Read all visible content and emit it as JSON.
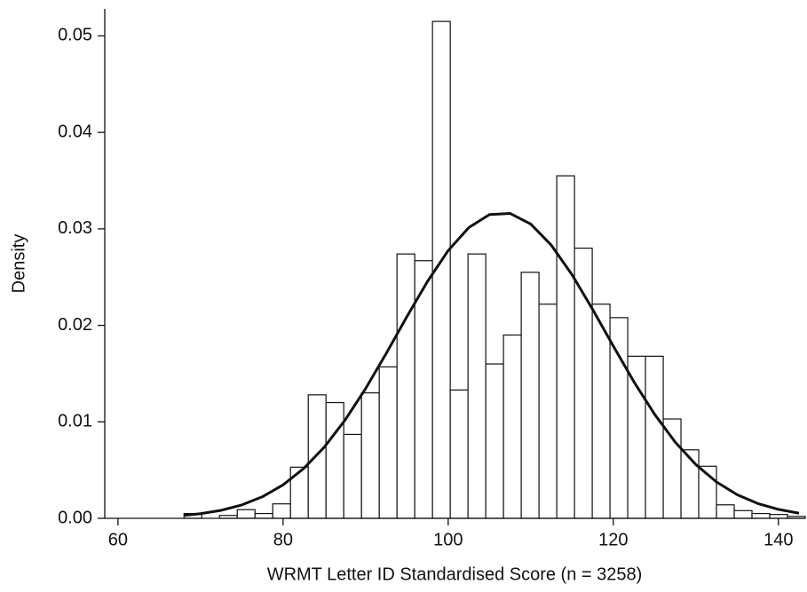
{
  "chart_data": {
    "type": "histogram",
    "x_label": "WRMT Letter ID Standardised Score (n = 3258)",
    "y_label": "Density",
    "bins": [
      68,
      70.15,
      72.3,
      74.45,
      76.6,
      78.75,
      80.9,
      83.05,
      85.2,
      87.35,
      89.5,
      91.65,
      93.8,
      95.95,
      98.1,
      100.25,
      102.4,
      104.55,
      106.7,
      108.85,
      111,
      113.15,
      115.3,
      117.45,
      119.6,
      121.75,
      123.9,
      126.05,
      128.2,
      130.35,
      132.5,
      134.65,
      136.8,
      138.95,
      141.1,
      143.25
    ],
    "values": [
      0.0005,
      0,
      0.0003,
      0.0009,
      0.0005,
      0.0015,
      0.0053,
      0.0128,
      0.012,
      0.0087,
      0.013,
      0.0157,
      0.0274,
      0.0267,
      0.0515,
      0.0133,
      0.0274,
      0.016,
      0.019,
      0.0255,
      0.0222,
      0.0355,
      0.028,
      0.0222,
      0.0208,
      0.0168,
      0.0168,
      0.0103,
      0.0071,
      0.0054,
      0.0014,
      0.0008,
      0.0005,
      0.0004,
      0.0002
    ],
    "color": "#ffffff",
    "edge_color": "#111111",
    "curve": {
      "x": [
        68,
        70,
        72.5,
        75,
        77.5,
        80,
        82.5,
        85,
        87.5,
        90,
        92.5,
        95,
        97.5,
        100,
        102.5,
        105,
        107.5,
        110,
        112.5,
        115,
        117.5,
        120,
        122.5,
        125,
        127.5,
        130,
        132.5,
        135,
        137.5,
        140,
        142.5
      ],
      "values": [
        0.0003,
        0.00048,
        0.00083,
        0.00139,
        0.00224,
        0.00347,
        0.00517,
        0.00739,
        0.01017,
        0.01345,
        0.0171,
        0.0209,
        0.02456,
        0.02775,
        0.03014,
        0.03148,
        0.0316,
        0.0305,
        0.0283,
        0.02525,
        0.02165,
        0.01786,
        0.01415,
        0.01079,
        0.0079,
        0.00557,
        0.00377,
        0.00245,
        0.00154,
        0.00093,
        0.00053
      ],
      "color": "#111111"
    },
    "xlim": [
      58.4,
      143.25
    ],
    "xticks": [
      60,
      80,
      100,
      120,
      140
    ],
    "ylim": [
      0,
      0.0528
    ],
    "yticks": [
      {
        "value": 0,
        "label": "0.00"
      },
      0.01,
      0.02,
      0.03,
      0.04,
      0.05
    ],
    "grid": false
  }
}
